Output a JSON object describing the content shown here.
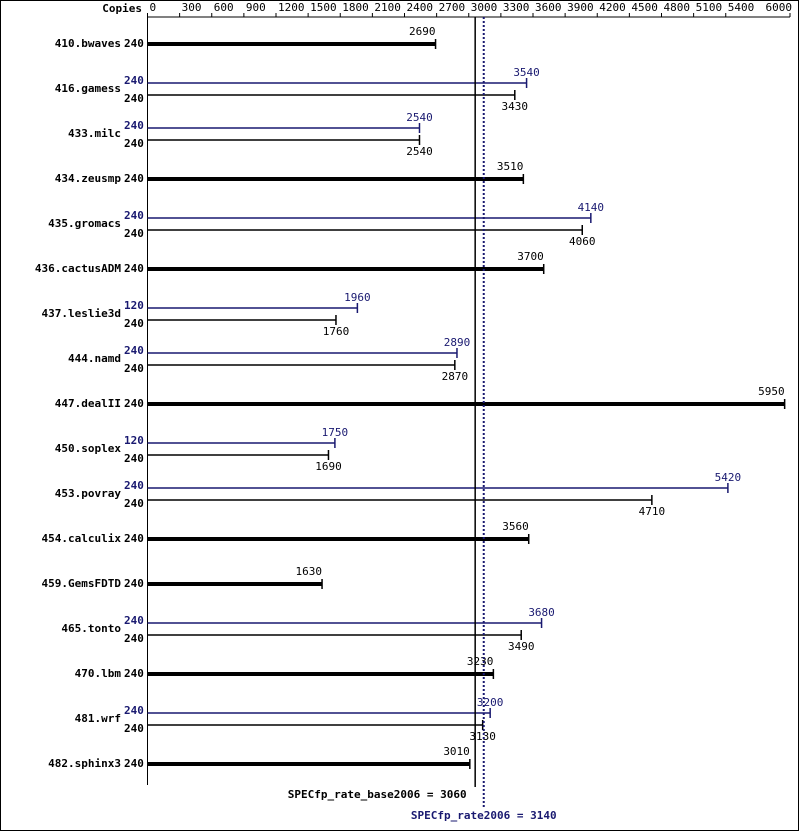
{
  "chart_data": {
    "type": "bar",
    "orientation": "horizontal",
    "copies_label": "Copies",
    "categories": [
      "410.bwaves",
      "416.gamess",
      "433.milc",
      "434.zeusmp",
      "435.gromacs",
      "436.cactusADM",
      "437.leslie3d",
      "444.namd",
      "447.dealII",
      "450.soplex",
      "453.povray",
      "454.calculix",
      "459.GemsFDTD",
      "465.tonto",
      "470.lbm",
      "481.wrf",
      "482.sphinx3"
    ],
    "series": [
      {
        "color": "#000000",
        "copies": [
          240,
          240,
          240,
          240,
          240,
          240,
          240,
          240,
          240,
          240,
          240,
          240,
          240,
          240,
          240,
          240,
          240
        ],
        "values": [
          2690,
          3430,
          2540,
          3510,
          4060,
          3700,
          1760,
          2870,
          5950,
          1690,
          4710,
          3560,
          1630,
          3490,
          3230,
          3130,
          3010
        ]
      },
      {
        "color": "#191970",
        "copies": [
          null,
          240,
          240,
          null,
          240,
          null,
          120,
          240,
          null,
          120,
          240,
          null,
          null,
          240,
          null,
          240,
          null
        ],
        "values": [
          null,
          3540,
          2540,
          null,
          4140,
          null,
          1960,
          2890,
          null,
          1750,
          5420,
          null,
          null,
          3680,
          null,
          3200,
          null
        ]
      }
    ],
    "xlim": [
      0,
      6000
    ],
    "xticks": [
      0,
      300,
      600,
      900,
      1200,
      1500,
      1800,
      2100,
      2400,
      2700,
      3000,
      3300,
      3600,
      3900,
      4200,
      4500,
      4800,
      5100,
      5400,
      6000
    ],
    "reference_lines": [
      {
        "label": "SPECfp_rate_base2006 = 3060",
        "value": 3060,
        "color": "#000000",
        "style": "solid"
      },
      {
        "label": "SPECfp_rate2006 = 3140",
        "value": 3140,
        "color": "#191970",
        "style": "dotted"
      }
    ]
  }
}
